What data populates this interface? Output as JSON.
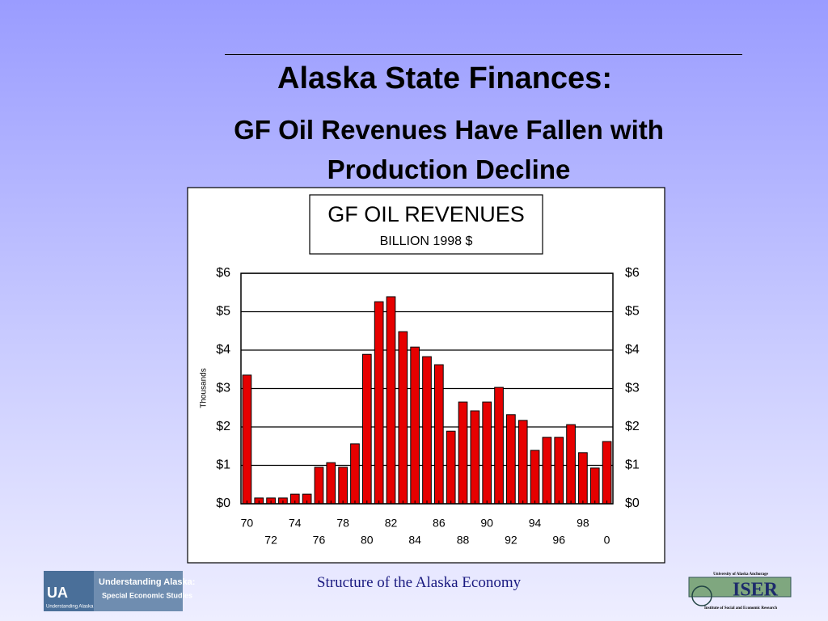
{
  "slide": {
    "title": "Alaska State Finances:",
    "subtitle": "GF Oil Revenues Have Fallen with Production Decline",
    "footer": "Structure of the Alaska Economy",
    "logo_left": {
      "mark": "UA",
      "caption": "Understanding Alaska",
      "name": "Understanding Alaska:",
      "series": "Special Economic Studies"
    },
    "logo_right": {
      "top": "University of Alaska Anchorage",
      "mark": "ISER",
      "bottom": "Institute of Social and Economic Research"
    }
  },
  "chart_data": {
    "type": "bar",
    "title": "GF OIL REVENUES",
    "subtitle": "BILLION 1998 $",
    "y_label": "Thousands",
    "categories": [
      "70",
      null,
      "72",
      null,
      "74",
      null,
      "76",
      null,
      "78",
      null,
      "80",
      null,
      "82",
      null,
      "84",
      null,
      "86",
      null,
      "88",
      null,
      "90",
      null,
      "92",
      null,
      "94",
      null,
      "96",
      null,
      "98",
      null,
      "0"
    ],
    "values": [
      3.35,
      0.15,
      0.15,
      0.15,
      0.25,
      0.25,
      0.95,
      1.07,
      0.95,
      1.56,
      3.89,
      5.26,
      5.39,
      4.48,
      4.08,
      3.83,
      3.62,
      1.89,
      2.65,
      2.42,
      2.65,
      3.03,
      2.32,
      2.17,
      1.39,
      1.73,
      1.73,
      2.06,
      1.33,
      0.93,
      1.62
    ],
    "color": "#e60000",
    "ylim": [
      0,
      6
    ],
    "yticks": [
      {
        "value": 0,
        "label": "$0"
      },
      {
        "value": 1,
        "label": "$1"
      },
      {
        "value": 2,
        "label": "$2"
      },
      {
        "value": 3,
        "label": "$3"
      },
      {
        "value": 4,
        "label": "$4"
      },
      {
        "value": 5,
        "label": "$5"
      },
      {
        "value": 6,
        "label": "$6"
      }
    ],
    "grid": true
  }
}
